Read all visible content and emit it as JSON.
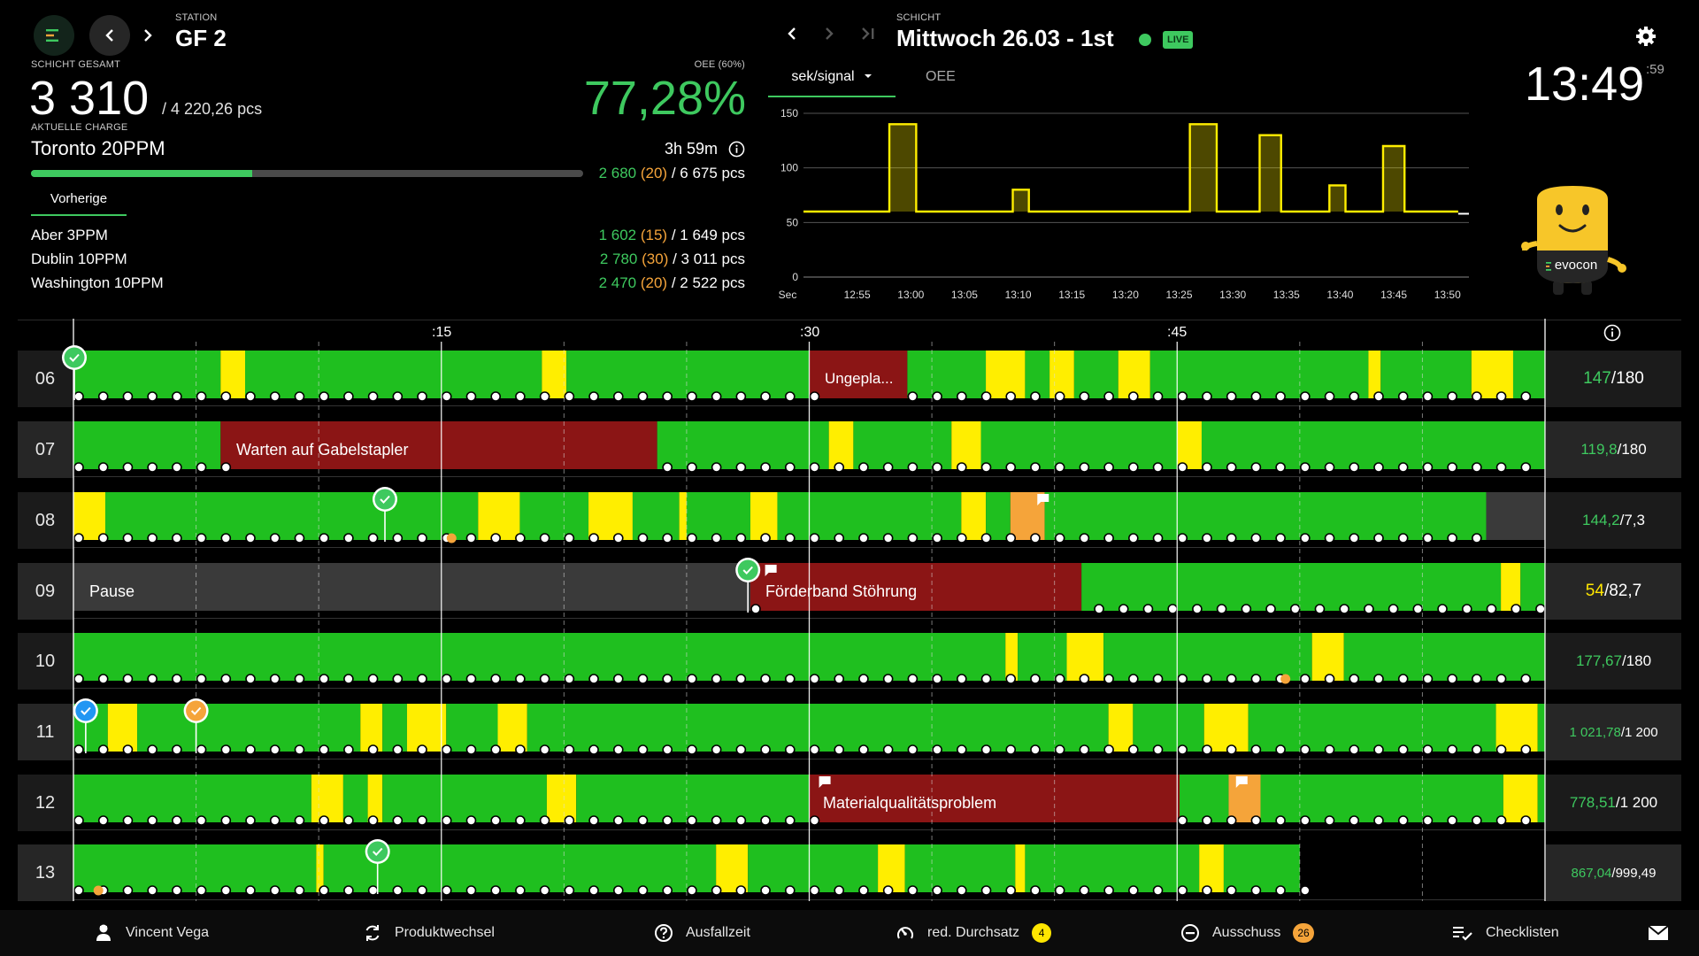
{
  "header": {
    "station_label": "STATION",
    "station_name": "GF 2",
    "shift_label": "SCHICHT",
    "shift_name": "Mittwoch 26.03 - 1st",
    "live_label": "LIVE",
    "clock": "13:49",
    "clock_seconds": ":59"
  },
  "summary": {
    "shift_total_label": "SCHICHT GESAMT",
    "shift_total_value": "3 310",
    "shift_total_target": "/ 4 220,26 pcs",
    "oee_label": "OEE (60%)",
    "oee_value": "77,28%",
    "current_batch_label": "AKTUELLE CHARGE",
    "current_batch_name": "Toronto 20PPM",
    "duration": "3h 59m",
    "batch_progress": 0.4,
    "batch_good": "2 680",
    "batch_scrap": "(20)",
    "batch_target": "/ 6 675 pcs"
  },
  "previous": {
    "tab_label": "Vorherige",
    "items": [
      {
        "name": "Aber 3PPM",
        "good": "1 602",
        "scrap": "(15)",
        "target": "/ 1 649 pcs"
      },
      {
        "name": "Dublin 10PPM",
        "good": "2 780",
        "scrap": "(30)",
        "target": "/ 3 011 pcs"
      },
      {
        "name": "Washington 10PPM",
        "good": "2 470",
        "scrap": "(20)",
        "target": "/ 2 522 pcs"
      }
    ]
  },
  "chart_tabs": {
    "active": "sek/signal",
    "other": "OEE"
  },
  "chart_data": {
    "type": "line",
    "xlabel": "Sec",
    "ylim": [
      0,
      150
    ],
    "yticks": [
      0,
      50,
      100,
      150
    ],
    "x_ticks": [
      "12:55",
      "13:00",
      "13:05",
      "13:10",
      "13:15",
      "13:20",
      "13:25",
      "13:30",
      "13:35",
      "13:40",
      "13:45",
      "13:50"
    ],
    "x_start": "12:50",
    "x_end": "13:52",
    "baseline": 60,
    "peaks": [
      {
        "start": "12:58",
        "end": "13:00.5",
        "value": 140
      },
      {
        "start": "13:09.5",
        "end": "13:11",
        "value": 80
      },
      {
        "start": "13:26",
        "end": "13:28.5",
        "value": 140
      },
      {
        "start": "13:32.5",
        "end": "13:34.5",
        "value": 130
      },
      {
        "start": "13:39",
        "end": "13:40.5",
        "value": 84
      },
      {
        "start": "13:44",
        "end": "13:46",
        "value": 120
      }
    ],
    "last_value": 58
  },
  "mascot": {
    "brand": "evocon"
  },
  "timeline": {
    "ticks": [
      ":15",
      ":30",
      ":45"
    ],
    "rows": [
      {
        "hour": "06",
        "good": "147",
        "target": "/180",
        "good_color": "#3ec95f",
        "label_size": 19
      },
      {
        "hour": "07",
        "good": "119,8",
        "target": "/180",
        "good_color": "#3ec95f",
        "label_size": 17
      },
      {
        "hour": "08",
        "good": "144,2",
        "target": "/7,3",
        "good_color": "#3ec95f",
        "label_size": 17
      },
      {
        "hour": "09",
        "good": "54",
        "target": "/82,7",
        "good_color": "#ffe600",
        "label_size": 19
      },
      {
        "hour": "10",
        "good": "177,67",
        "target": "/180",
        "good_color": "#3ec95f",
        "label_size": 17
      },
      {
        "hour": "11",
        "good": "1 021,78",
        "target": "/1 200",
        "good_color": "#3ec95f",
        "label_size": 15
      },
      {
        "hour": "12",
        "good": "778,51",
        "target": "/1 200",
        "good_color": "#3ec95f",
        "label_size": 17
      },
      {
        "hour": "13",
        "good": "867,04",
        "target": "/999,49",
        "good_color": "#3ec95f",
        "label_size": 15
      }
    ],
    "stop_labels": {
      "r06": "Ungepla...",
      "r07": "Warten auf Gabelstapler",
      "r09_pause": "Pause",
      "r09": "Förderband Stöhrung",
      "r12": "Materialqualitätsproblem"
    }
  },
  "footer": {
    "items": [
      {
        "label": "Vincent Vega",
        "icon": "user-icon"
      },
      {
        "label": "Produktwechsel",
        "icon": "product-change-icon"
      },
      {
        "label": "Ausfallzeit",
        "icon": "question-icon"
      },
      {
        "label": "red. Durchsatz",
        "icon": "speed-icon",
        "badge": "4",
        "badge_color": "#ffe600"
      },
      {
        "label": "Ausschuss",
        "icon": "minus-circle-icon",
        "badge": "26",
        "badge_color": "#f5a43a"
      },
      {
        "label": "Checklisten",
        "icon": "checklist-icon"
      }
    ]
  },
  "colors": {
    "green": "#1fbf1f",
    "yellow": "#ffee00",
    "red": "#8b1515",
    "orange": "#f5a43a",
    "gray": "#3a3a3a",
    "accent_green": "#3ec95f"
  }
}
